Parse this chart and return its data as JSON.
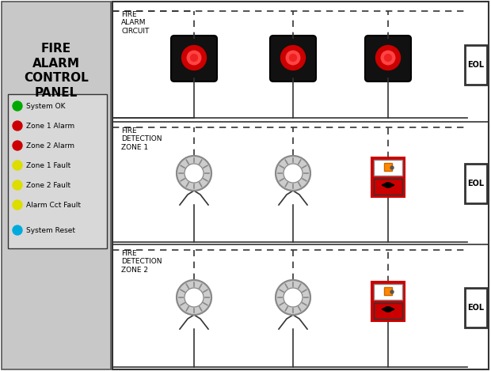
{
  "bg_color": "#ffffff",
  "panel_bg": "#c8c8c8",
  "panel_title": "FIRE\nALARM\nCONTROL\nPANEL",
  "legend_items": [
    {
      "color": "#00aa00",
      "label": "System OK"
    },
    {
      "color": "#cc0000",
      "label": "Zone 1 Alarm"
    },
    {
      "color": "#cc0000",
      "label": "Zone 2 Alarm"
    },
    {
      "color": "#dddd00",
      "label": "Zone 1 Fault"
    },
    {
      "color": "#dddd00",
      "label": "Zone 2 Fault"
    },
    {
      "color": "#dddd00",
      "label": "Alarm Cct Fault"
    },
    {
      "color": "#00aadd",
      "label": "System Reset"
    }
  ],
  "row1_label": "FIRE\nALARM\nCIRCUIT",
  "row2_label": "FIRE\nDETECTION\nZONE 1",
  "row3_label": "FIRE\nDETECTION\nZONE 2",
  "eol_label": "EOL"
}
